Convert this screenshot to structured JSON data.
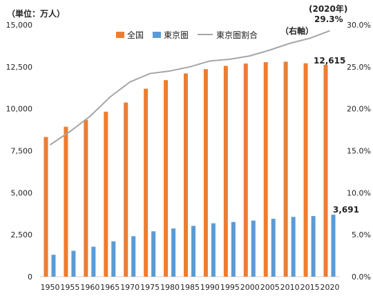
{
  "chart_data": {
    "type": "bar",
    "unit_label": "（単位：万人）",
    "right_axis_label": "（右軸）",
    "top_annotation": [
      "(2020年)",
      "29.3%"
    ],
    "categories": [
      "1950",
      "1955",
      "1960",
      "1965",
      "1970",
      "1975",
      "1980",
      "1985",
      "1990",
      "1995",
      "2000",
      "2005",
      "2010",
      "2015",
      "2020"
    ],
    "series": [
      {
        "name": "全国",
        "type": "bar",
        "axis": "left",
        "color": "#ED7D31",
        "values": [
          8320,
          8928,
          9342,
          9828,
          10372,
          11194,
          11706,
          12105,
          12361,
          12557,
          12693,
          12777,
          12806,
          12709,
          12615
        ]
      },
      {
        "name": "東京圏",
        "type": "bar",
        "axis": "left",
        "color": "#5B9BD5",
        "values": [
          1305,
          1542,
          1786,
          2102,
          2411,
          2704,
          2870,
          3027,
          3180,
          3258,
          3342,
          3448,
          3562,
          3613,
          3691
        ]
      },
      {
        "name": "東京圏割合",
        "type": "line",
        "axis": "right",
        "color": "#A5A5A5",
        "values": [
          15.7,
          17.3,
          19.1,
          21.4,
          23.2,
          24.2,
          24.5,
          25.0,
          25.7,
          25.9,
          26.3,
          27.0,
          27.8,
          28.4,
          29.3
        ]
      }
    ],
    "y_left": {
      "min": 0,
      "max": 15000,
      "ticks": [
        "0",
        "2,500",
        "5,000",
        "7,500",
        "10,000",
        "12,500",
        "15,000"
      ]
    },
    "y_right": {
      "min": 0,
      "max": 30,
      "ticks": [
        "0.0%",
        "5.0%",
        "10.0%",
        "15.0%",
        "20.0%",
        "25.0%",
        "30.0%"
      ]
    },
    "data_labels": {
      "total_2020": "12,615",
      "tokyo_2020": "3,691"
    },
    "legend_position": "top-center",
    "grid": false
  }
}
